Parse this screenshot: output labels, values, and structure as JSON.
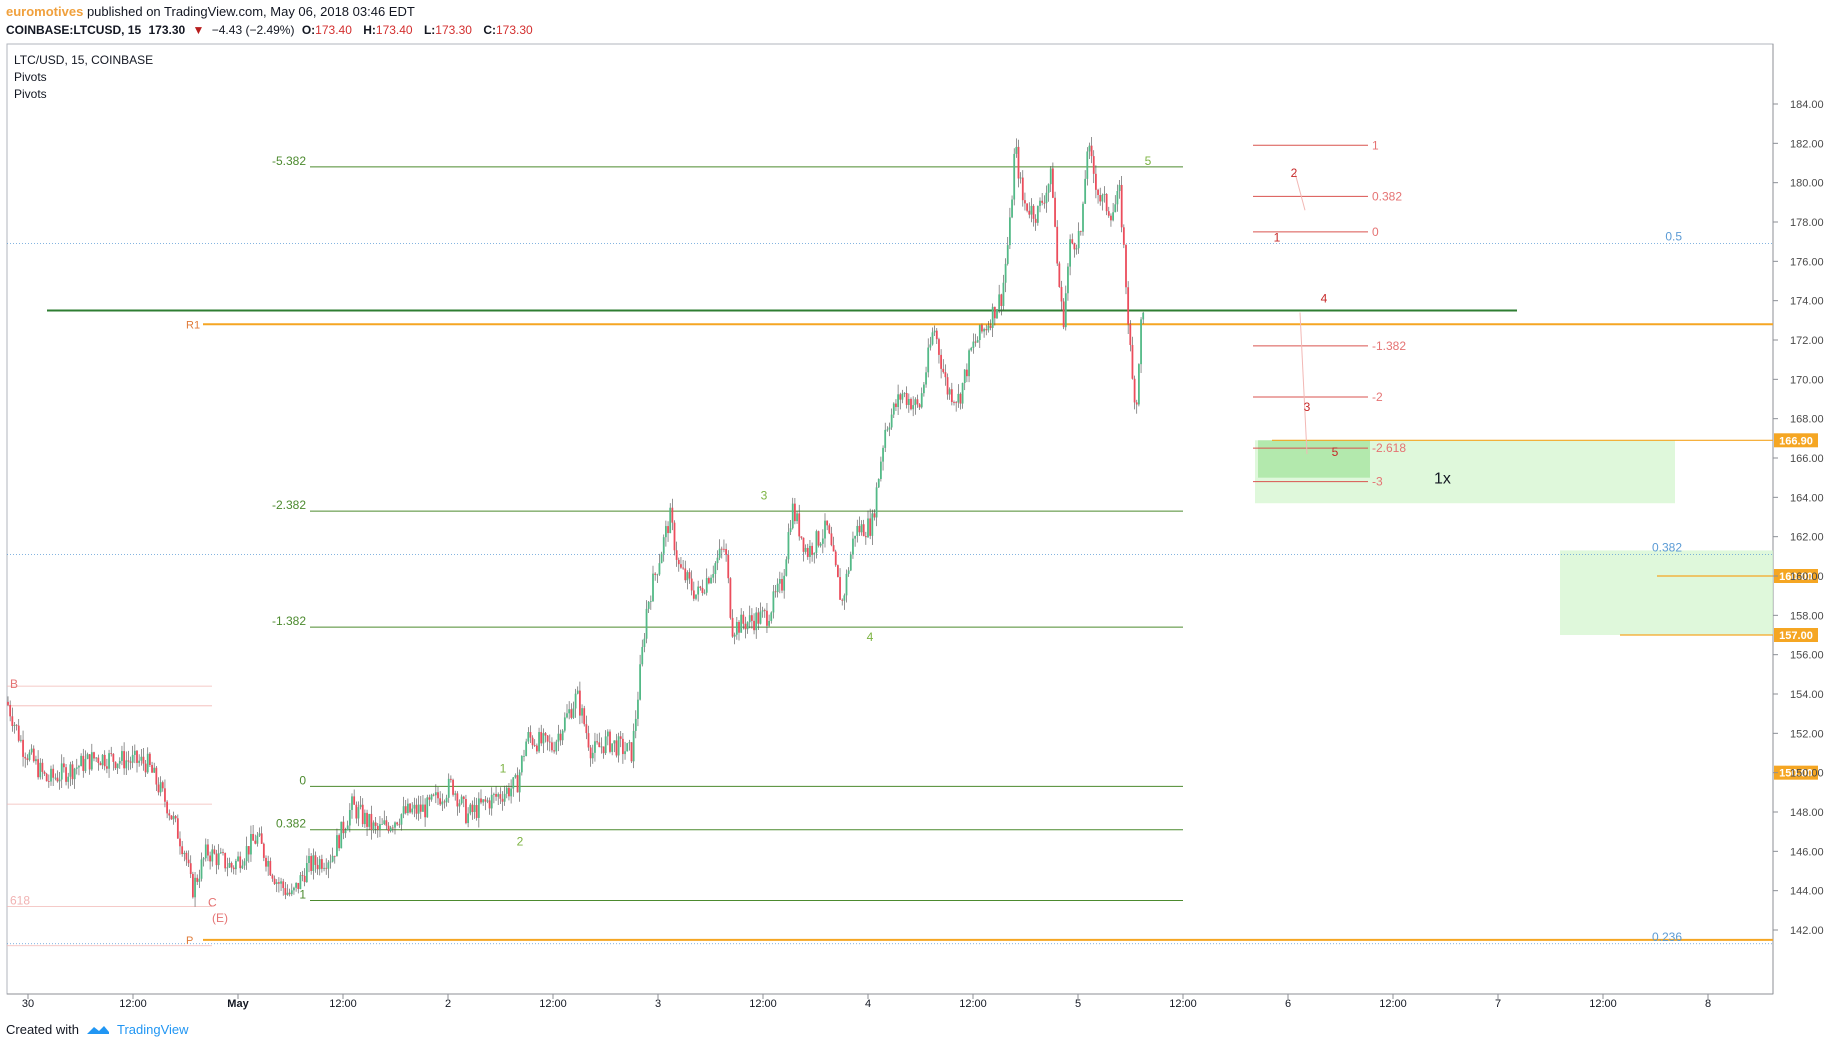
{
  "header": {
    "author": "euromotives",
    "published_text": "published on TradingView.com, May 06, 2018 03:46 EDT",
    "symbol_line": "COINBASE:LTCUSD, 15",
    "last": "173.30",
    "change": "−4.43 (−2.49%)",
    "o_label": "O:",
    "o_value": "173.40",
    "h_label": "H:",
    "h_value": "173.40",
    "l_label": "L:",
    "l_value": "173.30",
    "c_label": "C:",
    "c_value": "173.30"
  },
  "legend": {
    "symbol": "LTC/USD, 15, COINBASE",
    "indicator1": "Pivots",
    "indicator2": "Pivots"
  },
  "footer": {
    "created_with": "Created with",
    "brand": "TradingView"
  },
  "colors": {
    "up": "#53b987",
    "down": "#eb4d5c",
    "fib_green": "#4c8a2e",
    "fib_red": "#d9534f",
    "pivot_orange": "#f5a623",
    "channel_blue": "#5b9bd5",
    "target_fill": "#d4f5cf"
  },
  "chart_data": {
    "type": "candlestick",
    "symbol": "LTC/USD",
    "timeframe": "15",
    "ylim": [
      140.5,
      184.6
    ],
    "y_ticks": [
      142,
      144,
      146,
      148,
      150,
      152,
      154,
      156,
      158,
      160,
      162,
      164,
      166,
      168,
      170,
      172,
      174,
      176,
      178,
      180,
      182,
      184
    ],
    "x_ticks": [
      "30",
      "12:00",
      "May",
      "12:00",
      "2",
      "12:00",
      "3",
      "12:00",
      "4",
      "12:00",
      "5",
      "12:00",
      "6",
      "12:00",
      "7",
      "12:00",
      "8"
    ],
    "price_path": [
      [
        0,
        153.6
      ],
      [
        16,
        151.3
      ],
      [
        40,
        149.6
      ],
      [
        90,
        150.8
      ],
      [
        140,
        150.5
      ],
      [
        160,
        148.4
      ],
      [
        178,
        146.0
      ],
      [
        185,
        144.0
      ],
      [
        200,
        146.0
      ],
      [
        225,
        145.2
      ],
      [
        250,
        146.7
      ],
      [
        270,
        144.5
      ],
      [
        285,
        143.7
      ],
      [
        300,
        145.2
      ],
      [
        325,
        145.8
      ],
      [
        345,
        148.3
      ],
      [
        370,
        147.0
      ],
      [
        395,
        147.9
      ],
      [
        420,
        148.2
      ],
      [
        445,
        149.4
      ],
      [
        460,
        147.8
      ],
      [
        480,
        148.5
      ],
      [
        510,
        149.4
      ],
      [
        520,
        151.8
      ],
      [
        545,
        151.3
      ],
      [
        570,
        153.9
      ],
      [
        585,
        151.0
      ],
      [
        600,
        151.6
      ],
      [
        625,
        151.0
      ],
      [
        640,
        158.5
      ],
      [
        663,
        163.0
      ],
      [
        672,
        160.4
      ],
      [
        690,
        159.0
      ],
      [
        718,
        161.5
      ],
      [
        725,
        157.4
      ],
      [
        760,
        158.0
      ],
      [
        775,
        159.6
      ],
      [
        785,
        163.5
      ],
      [
        800,
        161.2
      ],
      [
        820,
        162.4
      ],
      [
        835,
        158.6
      ],
      [
        848,
        162.3
      ],
      [
        865,
        162.6
      ],
      [
        878,
        167.5
      ],
      [
        895,
        169.3
      ],
      [
        912,
        168.5
      ],
      [
        927,
        172.7
      ],
      [
        940,
        169.5
      ],
      [
        952,
        169.0
      ],
      [
        965,
        171.6
      ],
      [
        980,
        172.8
      ],
      [
        995,
        174.3
      ],
      [
        1003,
        177.8
      ],
      [
        1008,
        181.9
      ],
      [
        1016,
        179.0
      ],
      [
        1030,
        178.4
      ],
      [
        1045,
        180.4
      ],
      [
        1050,
        176.0
      ],
      [
        1056,
        172.8
      ],
      [
        1063,
        176.8
      ],
      [
        1075,
        177.5
      ],
      [
        1080,
        181.9
      ],
      [
        1093,
        179.2
      ],
      [
        1105,
        178.5
      ],
      [
        1113,
        179.4
      ],
      [
        1118,
        175.7
      ],
      [
        1125,
        170.0
      ],
      [
        1130,
        168.8
      ],
      [
        1133,
        172.5
      ],
      [
        1137,
        173.4
      ]
    ],
    "price_lines": [
      {
        "label": "166.90",
        "value": 166.9,
        "color": "#f5a623"
      },
      {
        "label": "160.00",
        "value": 160.0,
        "color": "#f5a623"
      },
      {
        "label": "157.00",
        "value": 157.0,
        "color": "#f5a623"
      },
      {
        "label": "150.00",
        "value": 150.0,
        "color": "#f5a623"
      }
    ],
    "pivots": [
      {
        "label": "R1",
        "value": 172.8
      },
      {
        "label": "P",
        "value": 141.5
      }
    ],
    "trendline": {
      "value": 173.5
    },
    "channel_levels": [
      {
        "label": "0.5",
        "value": 176.9
      },
      {
        "label": "0.382",
        "value": 161.1
      },
      {
        "label": "0.236",
        "value": 141.3
      }
    ],
    "fib_green": [
      {
        "label": "-5.382",
        "value": 180.8
      },
      {
        "label": "-2.382",
        "value": 163.3
      },
      {
        "label": "-1.382",
        "value": 157.4
      },
      {
        "label": "0",
        "value": 149.3
      },
      {
        "label": "0.382",
        "value": 147.1
      },
      {
        "label": "1",
        "value": 143.5
      }
    ],
    "fib_red": [
      {
        "label": "1",
        "value": 181.9
      },
      {
        "label": "0.382",
        "value": 179.3
      },
      {
        "label": "0",
        "value": 177.5
      },
      {
        "label": "-1.382",
        "value": 171.7
      },
      {
        "label": "-2",
        "value": 169.1
      },
      {
        "label": "-2.618",
        "value": 166.5
      },
      {
        "label": "-3",
        "value": 164.8
      }
    ],
    "wave_labels_green": [
      {
        "label": "1",
        "value": 150.0
      },
      {
        "label": "2",
        "value": 146.3
      },
      {
        "label": "3",
        "value": 163.9
      },
      {
        "label": "4",
        "value": 156.7
      },
      {
        "label": "5",
        "value": 180.9
      }
    ],
    "wave_labels_red": [
      {
        "label": "1",
        "value": 177.0
      },
      {
        "label": "2",
        "value": 180.3
      },
      {
        "label": "3",
        "value": 168.4
      },
      {
        "label": "4",
        "value": 173.9
      },
      {
        "label": "5",
        "value": 166.1
      }
    ],
    "left_labels": [
      {
        "label": "B",
        "value": 154.3
      },
      {
        "label": "C",
        "value": 143.2
      },
      {
        "label": "(E)",
        "value": 142.4
      },
      {
        "label": "618",
        "value": 143.3
      }
    ],
    "zone_text": "1x"
  }
}
